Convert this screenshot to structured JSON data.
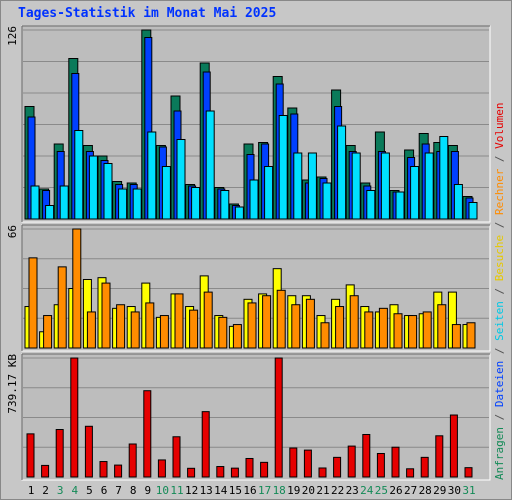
{
  "title": "Tages-Statistik im Monat Mai 2025",
  "colors": {
    "anfragen": "#0a7a5a",
    "dateien": "#0040ff",
    "seiten": "#00e0ff",
    "besuche": "#ffff00",
    "rechner": "#ff8c00",
    "volumen": "#e60000",
    "weekend_label": "#138a57",
    "frame_bg": "#c7c7c7",
    "title": "#0032ff"
  },
  "chart_data": [
    {
      "type": "bar",
      "panel": "top",
      "ymax_label": "126",
      "ylim": [
        0,
        126
      ],
      "categories": [
        "1",
        "2",
        "3",
        "4",
        "5",
        "6",
        "7",
        "8",
        "9",
        "10",
        "11",
        "12",
        "13",
        "14",
        "15",
        "16",
        "17",
        "18",
        "19",
        "20",
        "21",
        "22",
        "23",
        "24",
        "25",
        "26",
        "27",
        "28",
        "29",
        "30",
        "31"
      ],
      "grid": true,
      "series": [
        {
          "name": "Anfragen",
          "values": [
            75,
            20,
            50,
            107,
            49,
            42,
            25,
            24,
            126,
            49,
            82,
            23,
            104,
            21,
            10,
            50,
            51,
            95,
            74,
            26,
            28,
            86,
            49,
            24,
            58,
            19,
            46,
            57,
            51,
            49,
            15
          ]
        },
        {
          "name": "Dateien",
          "values": [
            68,
            19,
            45,
            97,
            45,
            39,
            23,
            23,
            121,
            48,
            72,
            22,
            98,
            20,
            9,
            43,
            50,
            90,
            70,
            24,
            27,
            75,
            45,
            22,
            45,
            18,
            41,
            50,
            45,
            45,
            14
          ]
        },
        {
          "name": "Seiten",
          "values": [
            22,
            9,
            22,
            59,
            42,
            37,
            20,
            20,
            58,
            35,
            53,
            21,
            72,
            19,
            8,
            26,
            35,
            69,
            44,
            44,
            24,
            62,
            44,
            19,
            44,
            18,
            35,
            44,
            55,
            23,
            11
          ]
        }
      ]
    },
    {
      "type": "bar",
      "panel": "middle",
      "ymax_label": "66",
      "ylim": [
        0,
        66
      ],
      "categories": [
        "1",
        "2",
        "3",
        "4",
        "5",
        "6",
        "7",
        "8",
        "9",
        "10",
        "11",
        "12",
        "13",
        "14",
        "15",
        "16",
        "17",
        "18",
        "19",
        "20",
        "21",
        "22",
        "23",
        "24",
        "25",
        "26",
        "27",
        "28",
        "29",
        "30",
        "31"
      ],
      "grid": true,
      "series": [
        {
          "name": "Besuche",
          "values": [
            23,
            9,
            24,
            33,
            38,
            39,
            22,
            23,
            36,
            17,
            30,
            23,
            40,
            18,
            12,
            27,
            30,
            44,
            29,
            29,
            18,
            27,
            35,
            23,
            20,
            24,
            18,
            19,
            31,
            31,
            13
          ]
        },
        {
          "name": "Rechner",
          "values": [
            50,
            18,
            45,
            66,
            20,
            36,
            24,
            20,
            25,
            18,
            30,
            21,
            31,
            17,
            13,
            25,
            29,
            32,
            24,
            27,
            14,
            23,
            29,
            20,
            22,
            19,
            18,
            20,
            24,
            13,
            14
          ]
        }
      ]
    },
    {
      "type": "bar",
      "panel": "bottom",
      "ymax_label": "739.17 KB",
      "ylim": [
        0,
        739.17
      ],
      "categories": [
        "1",
        "2",
        "3",
        "4",
        "5",
        "6",
        "7",
        "8",
        "9",
        "10",
        "11",
        "12",
        "13",
        "14",
        "15",
        "16",
        "17",
        "18",
        "19",
        "20",
        "21",
        "22",
        "23",
        "24",
        "25",
        "26",
        "27",
        "28",
        "29",
        "30",
        "31"
      ],
      "grid": true,
      "series": [
        {
          "name": "Volumen",
          "values": [
            268,
            72,
            295,
            739,
            315,
            96,
            74,
            205,
            536,
            106,
            250,
            54,
            406,
            65,
            55,
            115,
            91,
            739,
            180,
            167,
            56,
            122,
            192,
            264,
            146,
            185,
            51,
            122,
            256,
            385,
            58
          ]
        }
      ]
    }
  ],
  "legend": {
    "top_parts": [
      {
        "text": "Anfragen",
        "color": "#138a57"
      },
      {
        "text": " / ",
        "color": "#555555"
      },
      {
        "text": "Dateien",
        "color": "#0040ff"
      },
      {
        "text": " / ",
        "color": "#555555"
      },
      {
        "text": "Seiten",
        "color": "#00c8e6"
      },
      {
        "text": " / ",
        "color": "#555555"
      },
      {
        "text": "Besuche",
        "color": "#e6c800"
      },
      {
        "text": " / ",
        "color": "#555555"
      },
      {
        "text": "Rechner",
        "color": "#ff8c00"
      },
      {
        "text": " / ",
        "color": "#555555"
      },
      {
        "text": "Volumen",
        "color": "#e60000"
      }
    ]
  },
  "weekend_days": [
    "3",
    "4",
    "10",
    "11",
    "17",
    "18",
    "24",
    "25",
    "31"
  ]
}
